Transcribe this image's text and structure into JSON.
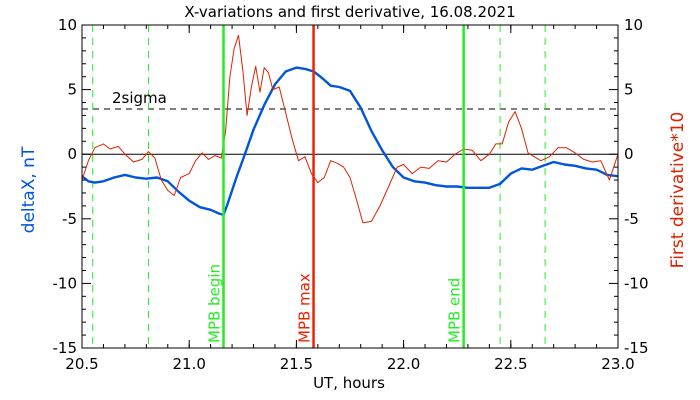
{
  "chart_data": {
    "type": "line",
    "title": "X-variations and first derivative, 16.08.2021",
    "xlabel": "UT, hours",
    "ylabel_left": "deltaX, nT",
    "ylabel_right": "First derivative*10",
    "xlim": [
      20.5,
      23.0
    ],
    "ylim": [
      -15,
      10
    ],
    "x_ticks": [
      20.5,
      21.0,
      21.5,
      22.0,
      22.5,
      23.0
    ],
    "x_tick_labels": [
      "20.5",
      "21.0",
      "21.5",
      "22.0",
      "22.5",
      "23.0"
    ],
    "y_ticks": [
      -15,
      -10,
      -5,
      0,
      5,
      10
    ],
    "y_tick_labels": [
      "-15",
      "-10",
      "-5",
      "0",
      "5",
      "10"
    ],
    "colors": {
      "deltaX": "#0055dd",
      "derivative": "#dd2200",
      "mpb": "#22ee22",
      "mpb_max": "#ee2200",
      "axes": "#000000"
    },
    "threshold": {
      "label": "2sigma",
      "value": 3.5
    },
    "zero_line": 0,
    "dashed_markers": [
      20.55,
      20.81,
      22.45,
      22.66
    ],
    "vertical_markers": [
      {
        "label": "MPB begin",
        "x": 21.16,
        "color": "#22ee22"
      },
      {
        "label": "MPB max",
        "x": 21.58,
        "color": "#ee2200"
      },
      {
        "label": "MPB end",
        "x": 22.28,
        "color": "#22ee22"
      }
    ],
    "series": [
      {
        "name": "deltaX",
        "axis": "left",
        "x": [
          20.5,
          20.53,
          20.56,
          20.6,
          20.65,
          20.7,
          20.75,
          20.8,
          20.85,
          20.9,
          20.95,
          21.0,
          21.05,
          21.1,
          21.14,
          21.16,
          21.18,
          21.22,
          21.26,
          21.3,
          21.35,
          21.4,
          21.45,
          21.5,
          21.54,
          21.58,
          21.62,
          21.66,
          21.7,
          21.75,
          21.8,
          21.85,
          21.9,
          21.95,
          22.0,
          22.05,
          22.1,
          22.15,
          22.2,
          22.25,
          22.3,
          22.35,
          22.4,
          22.45,
          22.5,
          22.55,
          22.6,
          22.65,
          22.7,
          22.75,
          22.8,
          22.85,
          22.9,
          22.95,
          23.0
        ],
        "values": [
          -1.7,
          -2.1,
          -2.2,
          -2.1,
          -1.8,
          -1.6,
          -1.8,
          -1.9,
          -1.8,
          -2.1,
          -2.9,
          -3.6,
          -4.1,
          -4.3,
          -4.6,
          -4.7,
          -3.8,
          -1.8,
          0.0,
          1.9,
          3.8,
          5.4,
          6.4,
          6.7,
          6.6,
          6.4,
          5.9,
          5.3,
          5.2,
          4.9,
          3.6,
          1.8,
          0.3,
          -1.0,
          -1.8,
          -2.1,
          -2.2,
          -2.4,
          -2.5,
          -2.5,
          -2.6,
          -2.6,
          -2.6,
          -2.3,
          -1.5,
          -1.1,
          -1.2,
          -0.9,
          -0.6,
          -0.8,
          -0.9,
          -1.1,
          -1.2,
          -1.6,
          -1.7
        ]
      },
      {
        "name": "First derivative*10",
        "axis": "right",
        "x": [
          20.5,
          20.53,
          20.56,
          20.6,
          20.63,
          20.67,
          20.7,
          20.74,
          20.78,
          20.81,
          20.84,
          20.87,
          20.9,
          20.93,
          20.96,
          21.0,
          21.03,
          21.06,
          21.09,
          21.12,
          21.15,
          21.17,
          21.19,
          21.21,
          21.23,
          21.25,
          21.27,
          21.29,
          21.31,
          21.33,
          21.35,
          21.37,
          21.39,
          21.42,
          21.45,
          21.48,
          21.51,
          21.54,
          21.57,
          21.6,
          21.63,
          21.66,
          21.69,
          21.72,
          21.75,
          21.78,
          21.81,
          21.85,
          21.89,
          21.93,
          21.97,
          22.0,
          22.04,
          22.08,
          22.12,
          22.16,
          22.2,
          22.24,
          22.28,
          22.32,
          22.36,
          22.4,
          22.43,
          22.46,
          22.49,
          22.52,
          22.55,
          22.58,
          22.61,
          22.64,
          22.68,
          22.72,
          22.76,
          22.8,
          22.84,
          22.88,
          22.92,
          22.96,
          23.0
        ],
        "values": [
          -2.0,
          -0.5,
          0.5,
          0.8,
          0.4,
          0.6,
          0.0,
          -0.6,
          -0.4,
          0.2,
          -0.3,
          -2.0,
          -2.8,
          -3.2,
          -1.8,
          -1.5,
          -0.5,
          0.1,
          -0.4,
          -0.1,
          -0.3,
          1.8,
          6.0,
          8.2,
          9.2,
          6.5,
          3.0,
          5.2,
          6.8,
          4.8,
          6.7,
          6.3,
          5.0,
          5.2,
          3.2,
          1.2,
          -0.5,
          -0.2,
          -1.5,
          -2.2,
          -1.8,
          -0.5,
          -0.7,
          -1.0,
          -1.8,
          -3.5,
          -5.3,
          -5.2,
          -4.0,
          -2.5,
          -1.0,
          -0.8,
          -1.5,
          -1.0,
          -1.1,
          -0.5,
          -0.6,
          0.0,
          0.4,
          0.3,
          -0.5,
          0.0,
          0.8,
          0.8,
          2.5,
          3.3,
          2.0,
          0.1,
          -0.2,
          -0.5,
          -0.2,
          0.5,
          0.5,
          0.1,
          -0.4,
          -0.6,
          -0.5,
          -2.0,
          0.0
        ]
      }
    ]
  }
}
